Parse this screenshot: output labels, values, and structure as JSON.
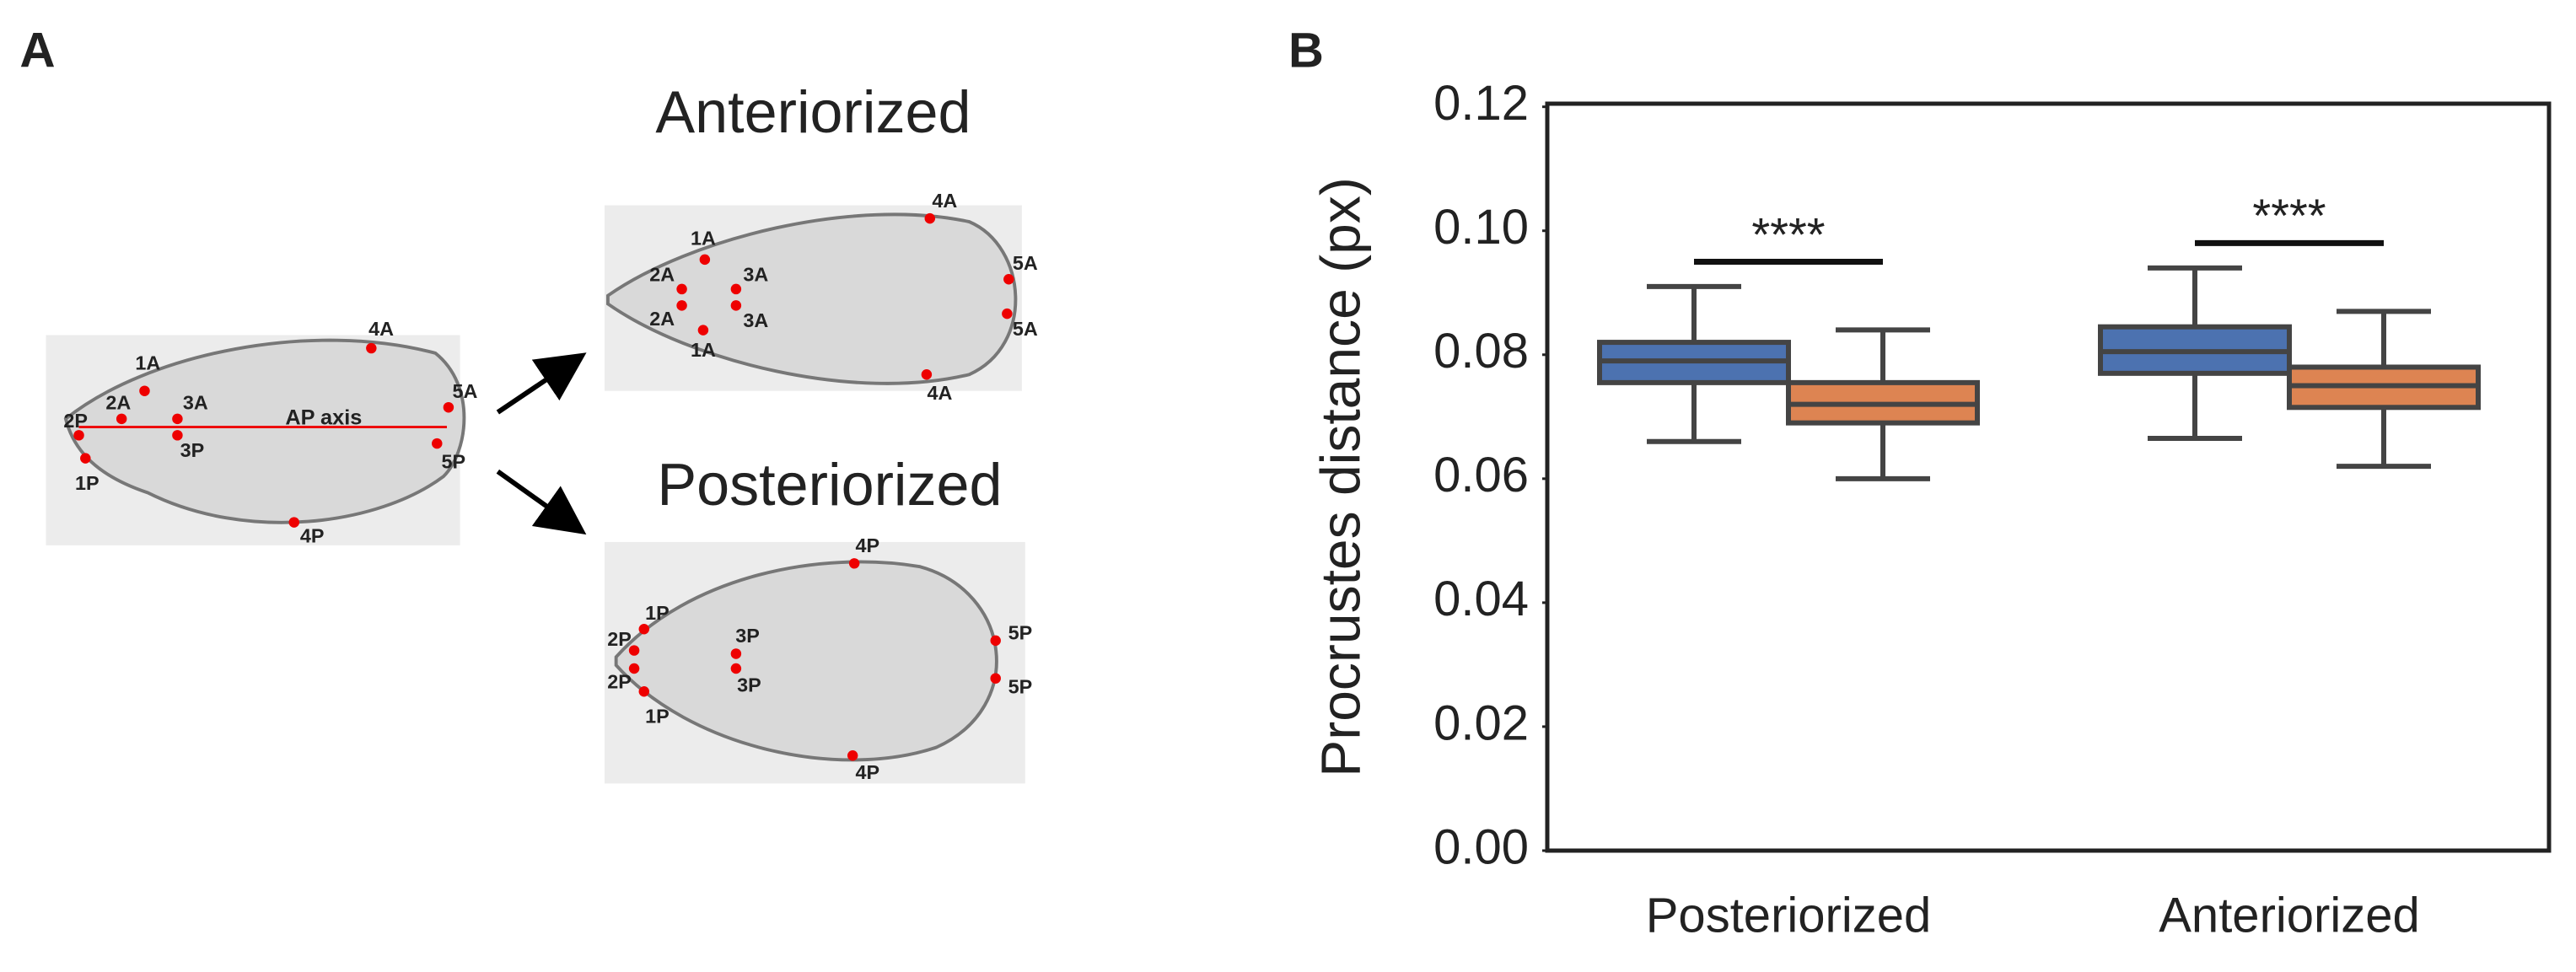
{
  "panel_a": {
    "label": "A",
    "axis_label": "AP axis",
    "original": {
      "landmarks": [
        "1A",
        "2A",
        "3A",
        "2P",
        "1P",
        "3P",
        "4A",
        "5A",
        "5P",
        "4P"
      ]
    },
    "anteriorized": {
      "title": "Anteriorized",
      "landmarks": [
        "1A",
        "2A",
        "3A",
        "2A",
        "3A",
        "1A",
        "4A",
        "5A",
        "5A",
        "4A"
      ]
    },
    "posteriorized": {
      "title": "Posteriorized",
      "landmarks": [
        "4P",
        "1P",
        "2P",
        "3P",
        "2P",
        "3P",
        "1P",
        "5P",
        "5P",
        "4P"
      ]
    }
  },
  "chart_data": {
    "type": "box",
    "panel_label": "B",
    "ylabel": "Procrustes distance (px)",
    "categories": [
      "Posteriorized",
      "Anteriorized"
    ],
    "series": [
      {
        "color": "#4c72b0",
        "values": [
          [
            0.066,
            0.0755,
            0.079,
            0.082,
            0.091
          ],
          [
            0.0665,
            0.077,
            0.0805,
            0.0845,
            0.094
          ]
        ]
      },
      {
        "color": "#dd8452",
        "values": [
          [
            0.06,
            0.069,
            0.072,
            0.0755,
            0.084
          ],
          [
            0.062,
            0.0715,
            0.075,
            0.078,
            0.087
          ]
        ]
      }
    ],
    "ylim": [
      0,
      0.1205
    ],
    "yticks": [
      {
        "value": 0,
        "label": "0.00"
      },
      0.02,
      0.04,
      0.06,
      0.08,
      {
        "value": 0.1,
        "label": "0.10"
      },
      0.12
    ],
    "annotations": [
      {
        "text": "****",
        "y": 0.095
      },
      {
        "text": "****",
        "y": 0.098
      }
    ]
  }
}
